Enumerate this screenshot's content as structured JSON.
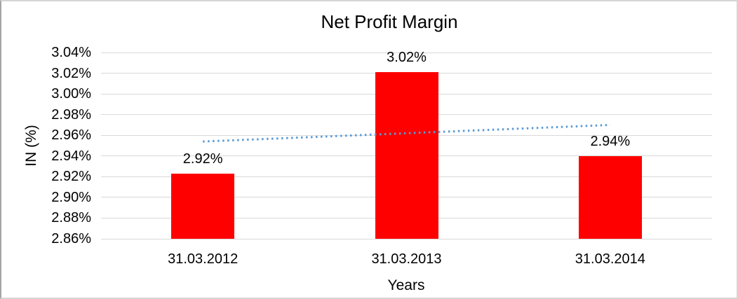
{
  "chart_data": {
    "type": "bar",
    "title": "Net Profit Margin",
    "ylabel": "IN (%)",
    "xlabel": "Years",
    "categories": [
      "31.03.2012",
      "31.03.2013",
      "31.03.2014"
    ],
    "values": [
      2.92,
      3.02,
      2.94
    ],
    "values_precise": [
      2.923,
      3.021,
      2.94
    ],
    "data_labels": [
      "2.92%",
      "3.02%",
      "2.94%"
    ],
    "unit": "%",
    "ylim": [
      2.86,
      3.04
    ],
    "ytick_step": 0.02,
    "yticks": [
      "2.86%",
      "2.88%",
      "2.90%",
      "2.92%",
      "2.94%",
      "2.96%",
      "2.98%",
      "3.00%",
      "3.02%",
      "3.04%"
    ],
    "grid": true,
    "legend": "none",
    "bar_color": "#FF0000",
    "gridline_color": "#D9D9D9",
    "trendline": {
      "type": "linear",
      "style": "dotted",
      "color": "#5B9BD5",
      "start_value": 2.954,
      "end_value": 2.97
    }
  }
}
